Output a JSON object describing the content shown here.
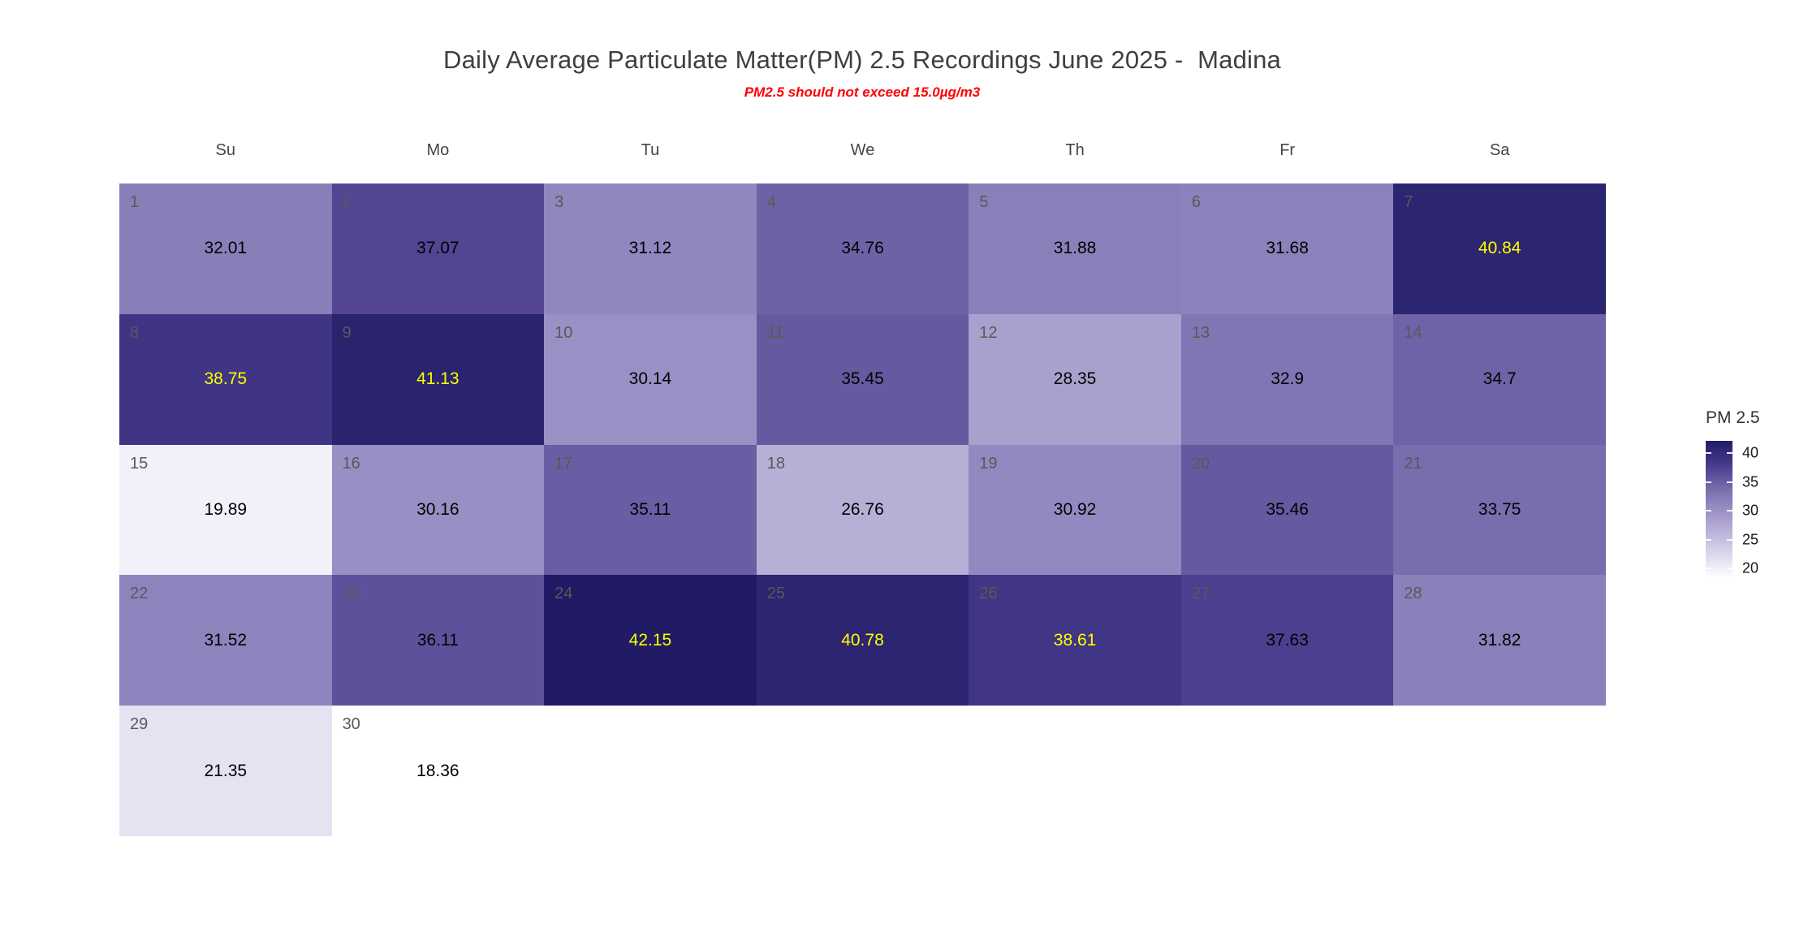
{
  "title": "Daily Average Particulate Matter(PM) 2.5 Recordings June 2025 -  Madina",
  "subtitle": "PM2.5 should not exceed 15.0µg/m3",
  "chart_data": {
    "type": "heatmap",
    "subtype": "calendar-heatmap",
    "month": "June 2025",
    "location": "Madina",
    "threshold_note": "PM2.5 should not exceed 15.0µg/m3",
    "day_headers": [
      "Su",
      "Mo",
      "Tu",
      "We",
      "Th",
      "Fr",
      "Sa"
    ],
    "vmin": 18.36,
    "vmax": 42.15,
    "colors": {
      "background": "#ffffff",
      "day_number": "#595959",
      "normal_value_text": "#000000",
      "high_value_text": "#ffff00"
    },
    "cells": [
      {
        "day": 1,
        "row": 0,
        "col": 0,
        "value": 32.01,
        "color": "#8A7EB9",
        "value_color": "#000000"
      },
      {
        "day": 2,
        "row": 0,
        "col": 1,
        "value": 37.07,
        "color": "#524593",
        "value_color": "#000000"
      },
      {
        "day": 3,
        "row": 0,
        "col": 2,
        "value": 31.12,
        "color": "#9286BF",
        "value_color": "#000000"
      },
      {
        "day": 4,
        "row": 0,
        "col": 3,
        "value": 34.76,
        "color": "#6E62A6",
        "value_color": "#000000"
      },
      {
        "day": 5,
        "row": 0,
        "col": 4,
        "value": 31.88,
        "color": "#8B7FBA",
        "value_color": "#000000"
      },
      {
        "day": 6,
        "row": 0,
        "col": 5,
        "value": 31.68,
        "color": "#8C81BB",
        "value_color": "#000000"
      },
      {
        "day": 7,
        "row": 0,
        "col": 6,
        "value": 40.84,
        "color": "#2C2571",
        "value_color": "#ffff00"
      },
      {
        "day": 8,
        "row": 1,
        "col": 0,
        "value": 38.75,
        "color": "#403485",
        "value_color": "#ffff00"
      },
      {
        "day": 9,
        "row": 1,
        "col": 1,
        "value": 41.13,
        "color": "#2A236E",
        "value_color": "#ffff00"
      },
      {
        "day": 10,
        "row": 1,
        "col": 2,
        "value": 30.14,
        "color": "#9B90C5",
        "value_color": "#000000"
      },
      {
        "day": 11,
        "row": 1,
        "col": 3,
        "value": 35.45,
        "color": "#6659A0",
        "value_color": "#000000"
      },
      {
        "day": 12,
        "row": 1,
        "col": 4,
        "value": 28.35,
        "color": "#AAA0CE",
        "value_color": "#000000"
      },
      {
        "day": 13,
        "row": 1,
        "col": 5,
        "value": 32.9,
        "color": "#8175B3",
        "value_color": "#000000"
      },
      {
        "day": 14,
        "row": 1,
        "col": 6,
        "value": 34.7,
        "color": "#6F62A6",
        "value_color": "#000000"
      },
      {
        "day": 15,
        "row": 2,
        "col": 0,
        "value": 19.89,
        "color": "#F2F0F8",
        "value_color": "#000000"
      },
      {
        "day": 16,
        "row": 2,
        "col": 1,
        "value": 30.16,
        "color": "#9A8FC5",
        "value_color": "#000000"
      },
      {
        "day": 17,
        "row": 2,
        "col": 2,
        "value": 35.11,
        "color": "#6A5DA3",
        "value_color": "#000000"
      },
      {
        "day": 18,
        "row": 2,
        "col": 3,
        "value": 26.76,
        "color": "#B8AFD6",
        "value_color": "#000000"
      },
      {
        "day": 19,
        "row": 2,
        "col": 4,
        "value": 30.92,
        "color": "#9388C0",
        "value_color": "#000000"
      },
      {
        "day": 20,
        "row": 2,
        "col": 5,
        "value": 35.46,
        "color": "#6559A0",
        "value_color": "#000000"
      },
      {
        "day": 21,
        "row": 2,
        "col": 6,
        "value": 33.75,
        "color": "#796DAE",
        "value_color": "#000000"
      },
      {
        "day": 22,
        "row": 3,
        "col": 0,
        "value": 31.52,
        "color": "#8E83BC",
        "value_color": "#000000"
      },
      {
        "day": 23,
        "row": 3,
        "col": 1,
        "value": 36.11,
        "color": "#5E519B",
        "value_color": "#000000"
      },
      {
        "day": 24,
        "row": 3,
        "col": 2,
        "value": 42.15,
        "color": "#201B64",
        "value_color": "#ffff00"
      },
      {
        "day": 25,
        "row": 3,
        "col": 3,
        "value": 40.78,
        "color": "#2D2571",
        "value_color": "#ffff00"
      },
      {
        "day": 26,
        "row": 3,
        "col": 4,
        "value": 38.61,
        "color": "#413586",
        "value_color": "#ffff00"
      },
      {
        "day": 27,
        "row": 3,
        "col": 5,
        "value": 37.63,
        "color": "#4B3F8F",
        "value_color": "#000000"
      },
      {
        "day": 28,
        "row": 3,
        "col": 6,
        "value": 31.82,
        "color": "#8B80BA",
        "value_color": "#000000"
      },
      {
        "day": 29,
        "row": 4,
        "col": 0,
        "value": 21.35,
        "color": "#E6E2F1",
        "value_color": "#000000"
      },
      {
        "day": 30,
        "row": 4,
        "col": 1,
        "value": 18.36,
        "color": "#FFFFFF",
        "value_color": "#000000"
      }
    ],
    "legend": {
      "title": "PM 2.5",
      "position": "right",
      "ticks": [
        40,
        35,
        30,
        25,
        20
      ],
      "gradient": [
        {
          "v": 42.15,
          "c": "#211C66"
        },
        {
          "v": 38.0,
          "c": "#473A8C"
        },
        {
          "v": 34.0,
          "c": "#776BAC"
        },
        {
          "v": 30.0,
          "c": "#9C91C6"
        },
        {
          "v": 24.0,
          "c": "#CFC8E4"
        },
        {
          "v": 18.36,
          "c": "#FFFFFF"
        }
      ]
    }
  }
}
